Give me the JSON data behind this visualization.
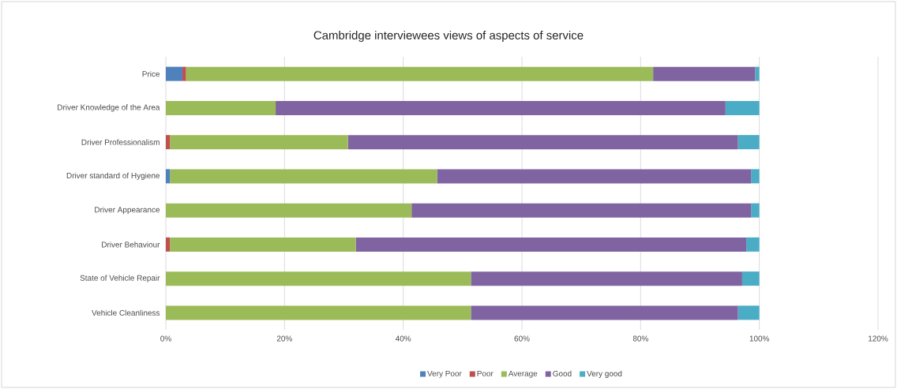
{
  "chart_data": {
    "type": "bar",
    "orientation": "horizontal",
    "stacked": true,
    "title": "Cambridge interviewees views of aspects of service",
    "categories": [
      "Price",
      "Driver Knowledge of the Area",
      "Driver Professionalism",
      "Driver standard of Hygiene",
      "Driver Appearance",
      "Driver Behaviour",
      "State of Vehicle Repair",
      "Vehicle Cleanliness"
    ],
    "series": [
      {
        "name": "Very Poor",
        "color": "#4f81bd",
        "values": [
          2.8,
          0,
          0,
          0.7,
          0,
          0,
          0,
          0
        ]
      },
      {
        "name": "Poor",
        "color": "#c0504d",
        "values": [
          0.6,
          0,
          0.7,
          0,
          0,
          0.7,
          0,
          0
        ]
      },
      {
        "name": "Average",
        "color": "#9bbb59",
        "values": [
          78.7,
          18.5,
          30.0,
          45.0,
          41.4,
          31.3,
          51.4,
          51.4
        ]
      },
      {
        "name": "Good",
        "color": "#8064a2",
        "values": [
          17.2,
          75.8,
          65.7,
          52.9,
          57.2,
          65.8,
          45.7,
          45.0
        ]
      },
      {
        "name": "Very good",
        "color": "#4bacc6",
        "values": [
          0.7,
          5.7,
          3.6,
          1.4,
          1.4,
          2.2,
          2.9,
          3.6
        ]
      }
    ],
    "xlim": [
      0,
      120
    ],
    "xticks": [
      {
        "value": 0,
        "label": "0%"
      },
      {
        "value": 20,
        "label": "20%"
      },
      {
        "value": 40,
        "label": "40%"
      },
      {
        "value": 60,
        "label": "60%"
      },
      {
        "value": 80,
        "label": "80%"
      },
      {
        "value": 100,
        "label": "100%"
      },
      {
        "value": 120,
        "label": "120%"
      }
    ],
    "grid": "x",
    "legend": "bottom"
  }
}
